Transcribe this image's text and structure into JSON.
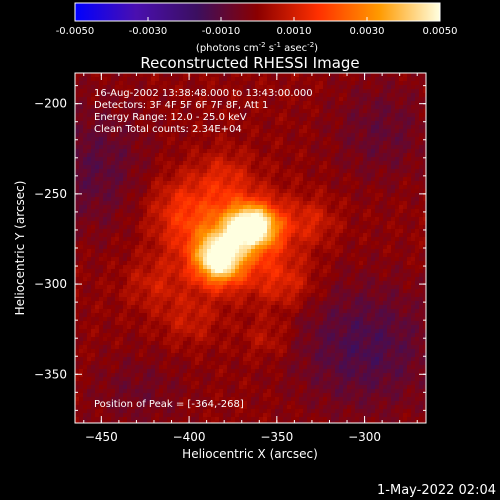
{
  "chart_data": {
    "type": "heatmap",
    "title": "Reconstructed RHESSI Image",
    "xlabel": "Heliocentric X (arcsec)",
    "ylabel": "Heliocentric Y (arcsec)",
    "xlim": [
      -465,
      -265
    ],
    "ylim": [
      -377,
      -183
    ],
    "x_ticks": [
      -450,
      -400,
      -350,
      -300
    ],
    "y_ticks": [
      -200,
      -250,
      -300,
      -350
    ],
    "colorbar": {
      "range": [
        -0.005,
        0.005
      ],
      "tick_values": [
        -0.005,
        -0.003,
        -0.001,
        0.001,
        0.003,
        0.005
      ],
      "tick_labels": [
        "-0.0050",
        "-0.0030",
        "-0.0010",
        "0.0010",
        "0.0030",
        "0.0050"
      ],
      "unit_prefix": "(photons cm",
      "unit_sup1": "-2",
      "unit_mid": " s",
      "unit_sup2": "-1",
      "unit_mid2": " asec",
      "unit_sup3": "-2",
      "unit_suffix": ")",
      "colors": [
        "#0000ff",
        "#4a0fb0",
        "#3b0f60",
        "#8b0000",
        "#ff3000",
        "#ff9a00",
        "#ffffe0"
      ]
    },
    "annotations": [
      "16-Aug-2002 13:38:48.000 to 13:43:00.000",
      "Detectors: 3F 4F 5F 6F 7F 8F, Att 1",
      "Energy Range: 12.0 - 25.0 keV",
      "Clean     Total counts: 2.34E+04"
    ],
    "peak_label": "Position of Peak = [-364,-268]",
    "peak_position": [
      -364,
      -268
    ],
    "sources": [
      {
        "x": -364,
        "y": -268,
        "sx": 10,
        "sy": 8,
        "amp": 0.005
      },
      {
        "x": -383,
        "y": -286,
        "sx": 9,
        "sy": 9,
        "amp": 0.0047
      },
      {
        "x": -375,
        "y": -275,
        "sx": 22,
        "sy": 18,
        "amp": 0.0022
      },
      {
        "x": -405,
        "y": -258,
        "sx": 14,
        "sy": 14,
        "amp": 0.0011
      },
      {
        "x": -345,
        "y": -300,
        "sx": 12,
        "sy": 10,
        "amp": 0.001
      },
      {
        "x": -420,
        "y": -300,
        "sx": 12,
        "sy": 10,
        "amp": 0.0008
      },
      {
        "x": -330,
        "y": -265,
        "sx": 10,
        "sy": 9,
        "amp": 0.0009
      },
      {
        "x": -380,
        "y": -240,
        "sx": 11,
        "sy": 10,
        "amp": 0.0009
      },
      {
        "x": -400,
        "y": -320,
        "sx": 12,
        "sy": 10,
        "amp": 0.0008
      },
      {
        "x": -355,
        "y": -330,
        "sx": 10,
        "sy": 8,
        "amp": 0.0007
      }
    ],
    "negative_regions": [
      {
        "x": -300,
        "y": -335,
        "sx": 28,
        "sy": 25,
        "amp": -0.0013
      },
      {
        "x": -455,
        "y": -235,
        "sx": 22,
        "sy": 25,
        "amp": -0.001
      },
      {
        "x": -290,
        "y": -215,
        "sx": 20,
        "sy": 20,
        "amp": -0.0008
      },
      {
        "x": -430,
        "y": -360,
        "sx": 20,
        "sy": 15,
        "amp": -0.0006
      }
    ],
    "grid": false
  },
  "footer": {
    "date": "1-May-2022 02:04"
  }
}
